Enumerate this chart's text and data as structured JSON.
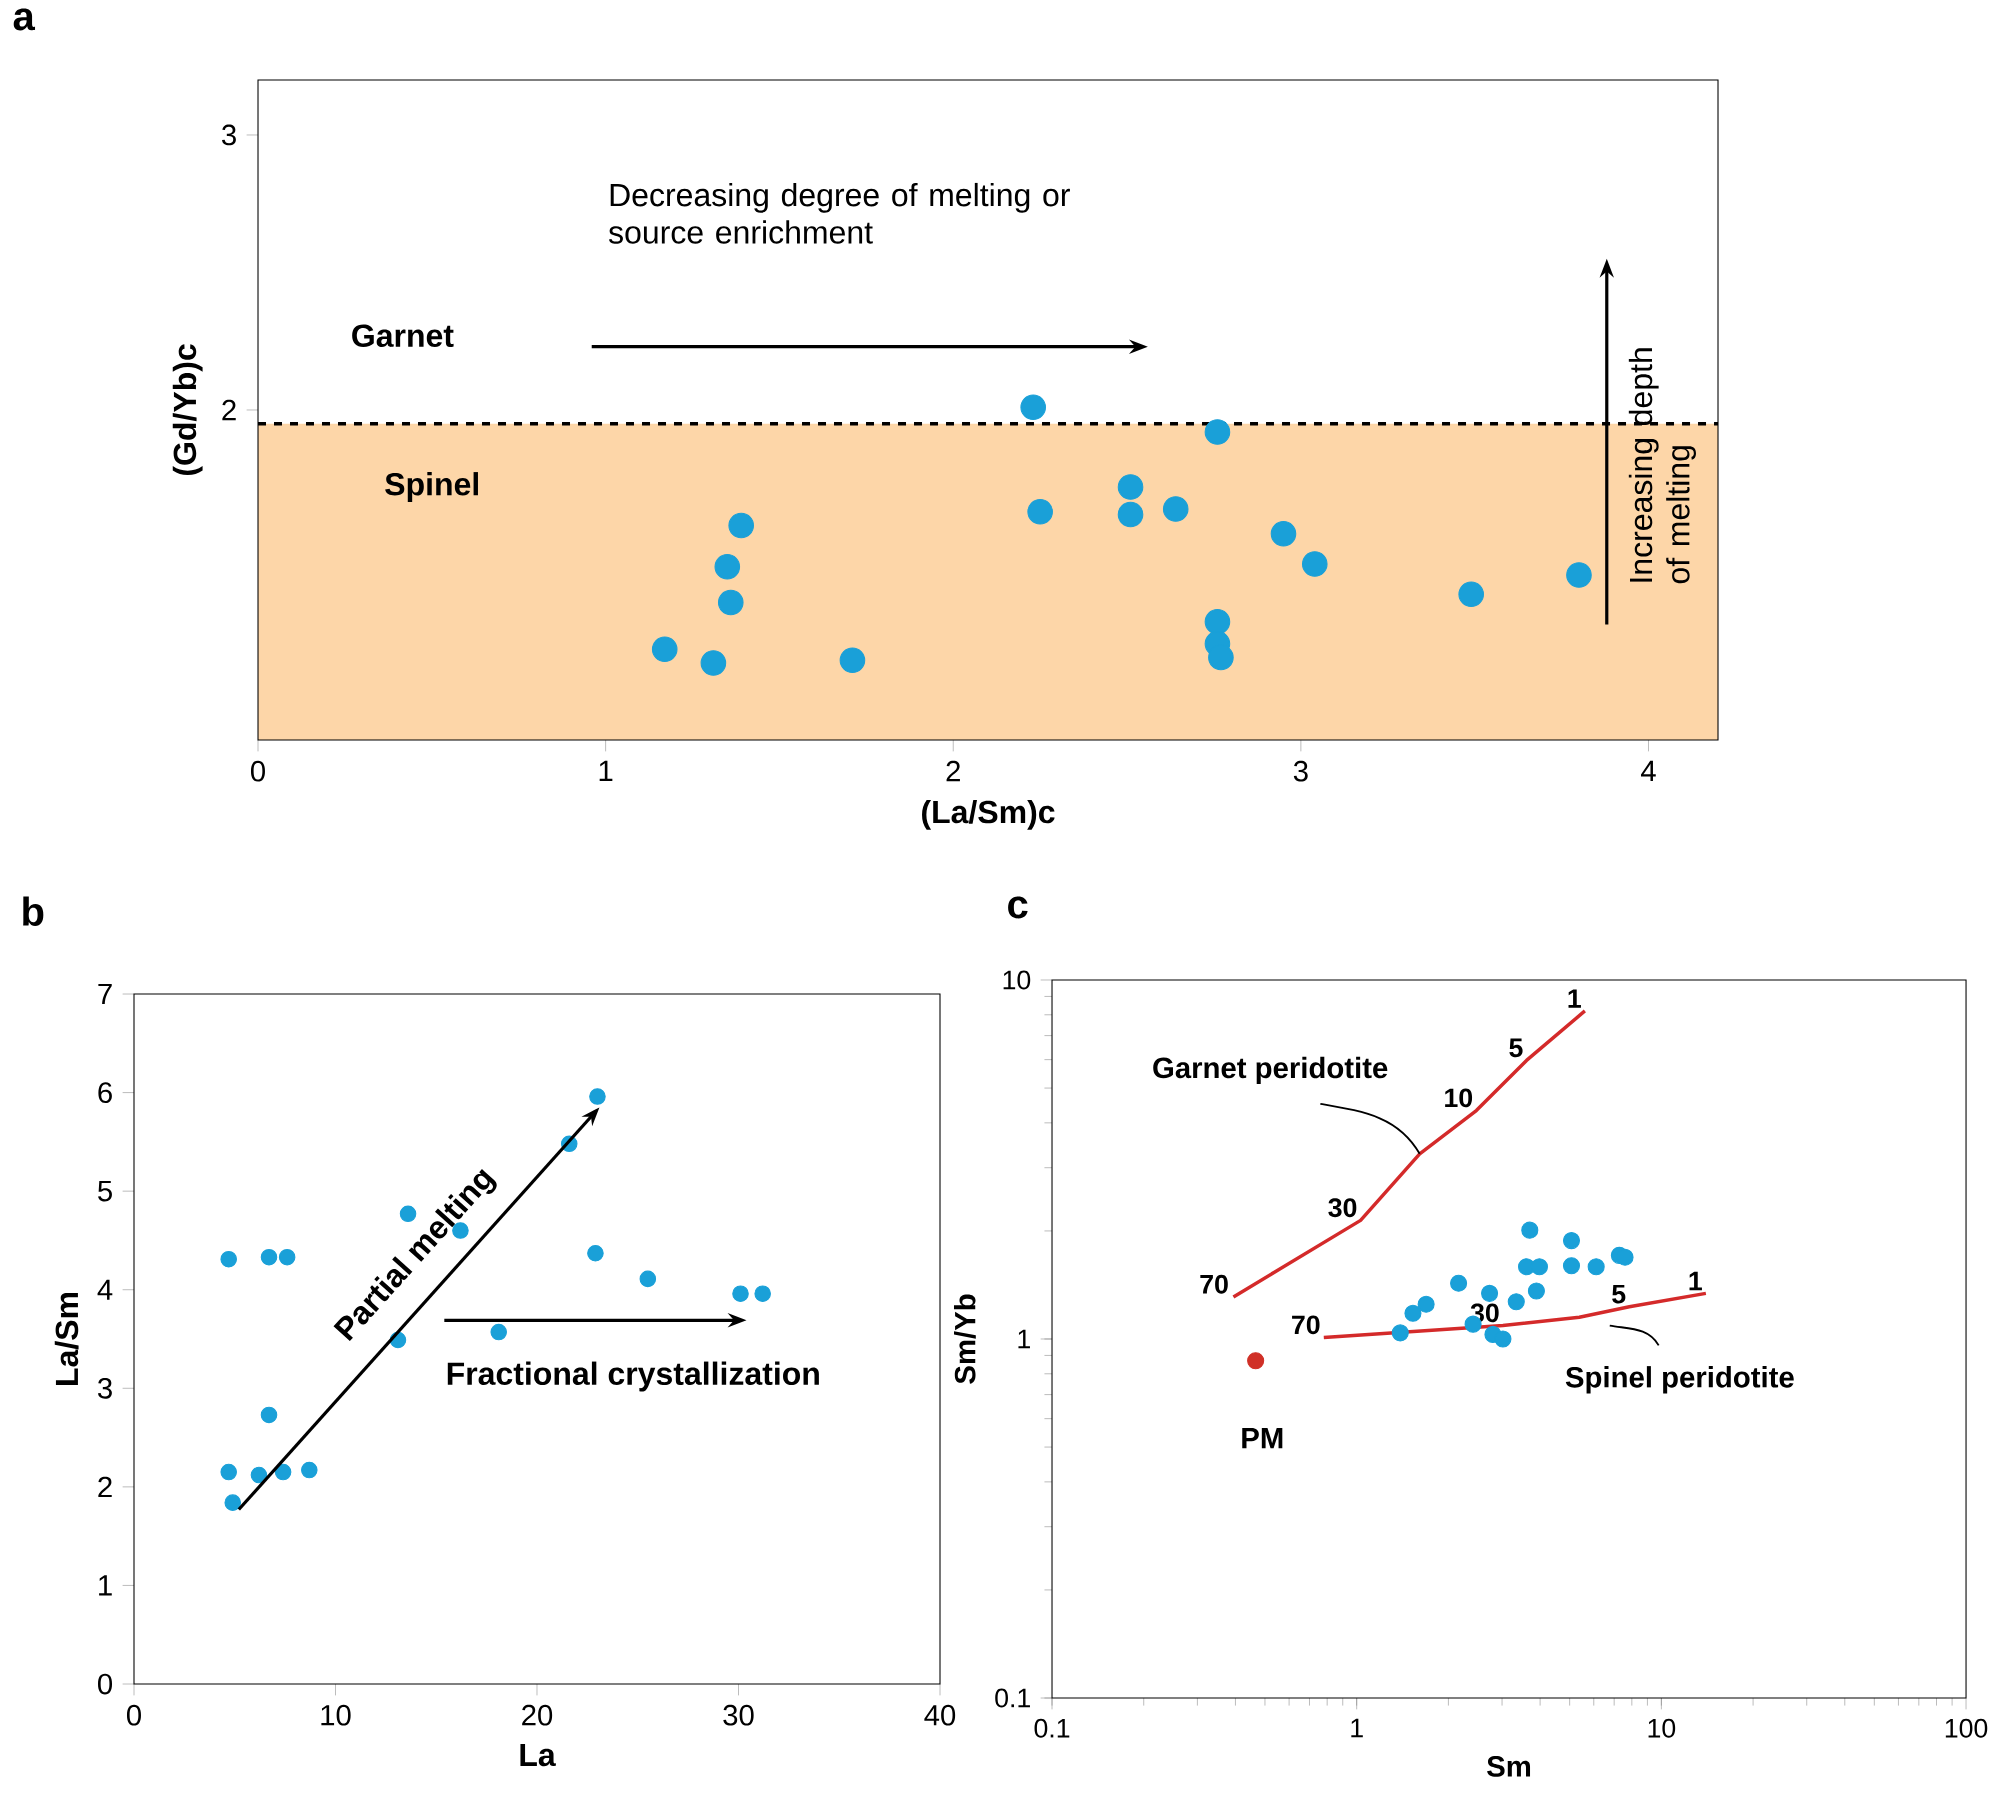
{
  "chart_data": [
    {
      "type": "scatter",
      "title": "a",
      "xlabel": "(La/Sm)c",
      "ylabel": "(Gd/Yb)c",
      "xlim": [
        0,
        4.2
      ],
      "ylim": [
        0.8,
        3.2
      ],
      "xticks": [
        0,
        1,
        2,
        3,
        4
      ],
      "yticks": [
        2,
        3
      ],
      "marker": "circle",
      "bands": [
        {
          "axis": "y",
          "from": 0.8,
          "to": 1.95,
          "label": "Spinel",
          "color": "#fdd6a8"
        }
      ],
      "ref_lines": [
        {
          "axis": "y",
          "value": 1.95,
          "line_style": "dashed"
        }
      ],
      "annotations": [
        "Decreasing degree of melting or source enrichment",
        "Increasing depth of melting",
        "Garnet"
      ],
      "series": [
        {
          "color": "#1aa0d8",
          "x": [
            2.23,
            2.76,
            2.51,
            2.25,
            2.51,
            2.64,
            1.39,
            2.95,
            1.35,
            3.04,
            3.8,
            1.36,
            3.49,
            2.76,
            2.76,
            2.77,
            1.17,
            1.31,
            1.71
          ],
          "values": [
            2.01,
            1.92,
            1.72,
            1.63,
            1.62,
            1.64,
            1.58,
            1.55,
            1.43,
            1.44,
            1.4,
            1.3,
            1.33,
            1.23,
            1.15,
            1.1,
            1.13,
            1.08,
            1.09
          ]
        }
      ]
    },
    {
      "type": "scatter",
      "title": "b",
      "xlabel": "La",
      "ylabel": "La/Sm",
      "xlim": [
        0,
        40
      ],
      "ylim": [
        0,
        7
      ],
      "xticks": [
        0,
        10,
        20,
        30,
        40
      ],
      "yticks": [
        0,
        1,
        2,
        3,
        4,
        5,
        6,
        7
      ],
      "marker": "circle",
      "annotations": [
        "Partial melting",
        "Fractional crystallization"
      ],
      "series": [
        {
          "color": "#1aa0d8",
          "x": [
            4.7,
            6.7,
            7.6,
            4.7,
            4.9,
            6.7,
            6.2,
            7.4,
            8.7,
            13.6,
            13.1,
            16.2,
            18.1,
            21.6,
            23.0,
            22.9,
            25.5,
            30.1,
            31.2
          ],
          "values": [
            4.31,
            4.33,
            4.33,
            2.15,
            1.84,
            2.73,
            2.12,
            2.15,
            2.17,
            4.77,
            3.49,
            4.6,
            3.57,
            5.48,
            5.96,
            4.37,
            4.11,
            3.96,
            3.96
          ]
        }
      ]
    },
    {
      "type": "scatter",
      "title": "c",
      "xlabel": "Sm",
      "ylabel": "Sm/Yb",
      "log": "xy",
      "xlim": [
        0.1,
        100
      ],
      "ylim": [
        0.1,
        10
      ],
      "xticks": [
        0.1,
        1,
        10,
        100
      ],
      "yticks": [
        0.1,
        1,
        10
      ],
      "annotations": [
        {
          "text": "70",
          "x": 0.39,
          "y": 1.31
        },
        {
          "text": "30",
          "x": 1.03,
          "y": 2.14
        },
        {
          "text": "10",
          "x": 2.47,
          "y": 4.33
        },
        {
          "text": "5",
          "x": 3.61,
          "y": 5.97
        },
        {
          "text": "1",
          "x": 5.61,
          "y": 8.2
        },
        {
          "text": "70",
          "x": 0.78,
          "y": 1.01
        },
        {
          "text": "30",
          "x": 3.02,
          "y": 1.09
        },
        {
          "text": "5",
          "x": 7.85,
          "y": 1.23
        },
        {
          "text": "1",
          "x": 14.0,
          "y": 1.34
        }
      ],
      "series": [
        {
          "marker": "circle",
          "color": "#1aa0d8",
          "x": [
            1.39,
            1.53,
            1.69,
            2.16,
            2.41,
            2.73,
            2.8,
            3.02,
            3.34,
            3.7,
            3.61,
            3.98,
            3.89,
            5.07,
            5.07,
            6.11,
            7.28,
            7.6
          ],
          "values": [
            1.04,
            1.18,
            1.25,
            1.43,
            1.1,
            1.34,
            1.03,
            1.0,
            1.27,
            2.01,
            1.59,
            1.59,
            1.36,
            1.88,
            1.6,
            1.59,
            1.71,
            1.69
          ]
        },
        {
          "name": "PM",
          "marker": "circle",
          "color": "#d03027",
          "x": [
            0.466
          ],
          "values": [
            0.87
          ]
        },
        {
          "type": "line",
          "name": "Garnet peridotite",
          "color": "#d42a2a",
          "x": [
            0.394,
            1.03,
            1.61,
            2.47,
            3.61,
            5.61
          ],
          "values": [
            1.31,
            2.14,
            3.28,
            4.33,
            5.97,
            8.2
          ]
        },
        {
          "type": "line",
          "name": "Spinel peridotite",
          "color": "#d42a2a",
          "x": [
            0.78,
            3.02,
            5.38,
            7.85,
            14.0
          ],
          "values": [
            1.01,
            1.09,
            1.15,
            1.23,
            1.34
          ]
        }
      ]
    }
  ]
}
